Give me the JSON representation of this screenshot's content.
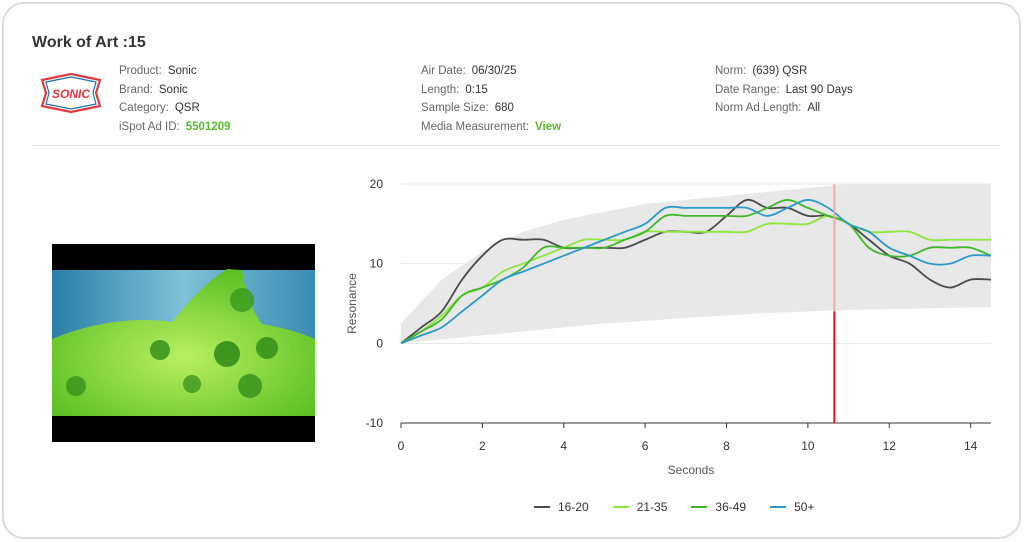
{
  "ad": {
    "title": "Work of Art :15",
    "logo_text": "SONIC",
    "col1": [
      {
        "label": "Product:",
        "value": "Sonic",
        "link": false
      },
      {
        "label": "Brand:",
        "value": "Sonic",
        "link": false
      },
      {
        "label": "Category:",
        "value": "QSR",
        "link": false
      },
      {
        "label": "iSpot Ad ID:",
        "value": "5501209",
        "link": true
      }
    ],
    "col2": [
      {
        "label": "Air Date:",
        "value": "06/30/25",
        "link": false
      },
      {
        "label": "Length:",
        "value": "0:15",
        "link": false
      },
      {
        "label": "Sample Size:",
        "value": "680",
        "link": false
      },
      {
        "label": "Media Measurement:",
        "value": "View",
        "link": true
      }
    ],
    "col3": [
      {
        "label": "Norm:",
        "value": "(639) QSR",
        "link": false
      },
      {
        "label": "Date Range:",
        "value": "Last 90 Days",
        "link": false
      },
      {
        "label": "Norm Ad Length:",
        "value": "All",
        "link": false
      }
    ]
  },
  "colors": {
    "brand_red": "#e03a3e",
    "brand_blue": "#1b6fb8",
    "link_green": "#5cb82e",
    "marker_red": "#e8141c",
    "band_gray": "#e8e8e8"
  },
  "chart_data": {
    "type": "line",
    "xlabel": "Seconds",
    "ylabel": "Resonance",
    "xlim": [
      0,
      14.5
    ],
    "ylim": [
      -10,
      20
    ],
    "xticks": [
      0,
      2,
      4,
      6,
      8,
      10,
      12,
      14
    ],
    "yticks": [
      -10,
      0,
      10,
      20
    ],
    "grid": "horizontal",
    "legend": "bottom",
    "marker_x": 10.65,
    "norm_band": {
      "x": [
        0,
        1,
        2,
        3,
        4,
        5,
        6,
        7,
        8,
        9,
        10,
        11,
        12,
        13,
        14,
        14.5
      ],
      "upper": [
        2.5,
        8,
        11.5,
        14,
        15.5,
        16.5,
        17.5,
        18,
        18.5,
        19,
        19.5,
        20,
        20,
        20,
        20,
        20
      ],
      "lower": [
        0,
        0.5,
        1,
        1.5,
        2,
        2.5,
        2.8,
        3.2,
        3.5,
        3.8,
        4,
        4.2,
        4.3,
        4.4,
        4.5,
        4.5
      ]
    },
    "series": [
      {
        "name": "16-20",
        "color": "#4a4a4a",
        "x": [
          0,
          0.5,
          1,
          1.5,
          2,
          2.5,
          3,
          3.5,
          4,
          4.5,
          5,
          5.5,
          6,
          6.5,
          7,
          7.5,
          8,
          8.5,
          9,
          9.5,
          10,
          10.5,
          11,
          11.5,
          12,
          12.5,
          13,
          13.5,
          14,
          14.5
        ],
        "y": [
          0,
          2,
          4,
          8,
          11,
          13,
          13,
          13,
          12,
          12,
          12,
          12,
          13,
          14,
          14,
          14,
          16,
          18,
          17,
          17,
          16,
          16,
          15,
          13,
          11,
          10,
          8,
          7,
          8,
          8
        ]
      },
      {
        "name": "21-35",
        "color": "#8ee63b",
        "x": [
          0,
          0.5,
          1,
          1.5,
          2,
          2.5,
          3,
          3.5,
          4,
          4.5,
          5,
          5.5,
          6,
          6.5,
          7,
          7.5,
          8,
          8.5,
          9,
          9.5,
          10,
          10.5,
          11,
          11.5,
          12,
          12.5,
          13,
          13.5,
          14,
          14.5
        ],
        "y": [
          0,
          1.5,
          3.5,
          6,
          7,
          9,
          10,
          11,
          12,
          13,
          13,
          13,
          14,
          14,
          14,
          14,
          14,
          14,
          15,
          15,
          15,
          16,
          15,
          14,
          14,
          14,
          13,
          13,
          13,
          13
        ]
      },
      {
        "name": "36-49",
        "color": "#3fb82a",
        "x": [
          0,
          0.5,
          1,
          1.5,
          2,
          2.5,
          3,
          3.5,
          4,
          4.5,
          5,
          5.5,
          6,
          6.5,
          7,
          7.5,
          8,
          8.5,
          9,
          9.5,
          10,
          10.5,
          11,
          11.5,
          12,
          12.5,
          13,
          13.5,
          14,
          14.5
        ],
        "y": [
          0,
          1.5,
          3,
          6,
          7,
          8,
          9.5,
          12,
          12,
          12,
          12,
          13,
          14,
          16,
          16,
          16,
          16,
          16,
          17,
          18,
          17,
          16,
          15,
          12,
          11,
          11,
          12,
          12,
          12,
          11
        ]
      },
      {
        "name": "50+",
        "color": "#2b9ac8",
        "x": [
          0,
          0.5,
          1,
          1.5,
          2,
          2.5,
          3,
          3.5,
          4,
          4.5,
          5,
          5.5,
          6,
          6.5,
          7,
          7.5,
          8,
          8.5,
          9,
          9.5,
          10,
          10.5,
          11,
          11.5,
          12,
          12.5,
          13,
          13.5,
          14,
          14.5
        ],
        "y": [
          0,
          1,
          2,
          4,
          6,
          8,
          9,
          10,
          11,
          12,
          13,
          14,
          15,
          17,
          17,
          17,
          17,
          17,
          16,
          17,
          18,
          17,
          15,
          14,
          12,
          11,
          10,
          10,
          11,
          11
        ]
      }
    ]
  }
}
